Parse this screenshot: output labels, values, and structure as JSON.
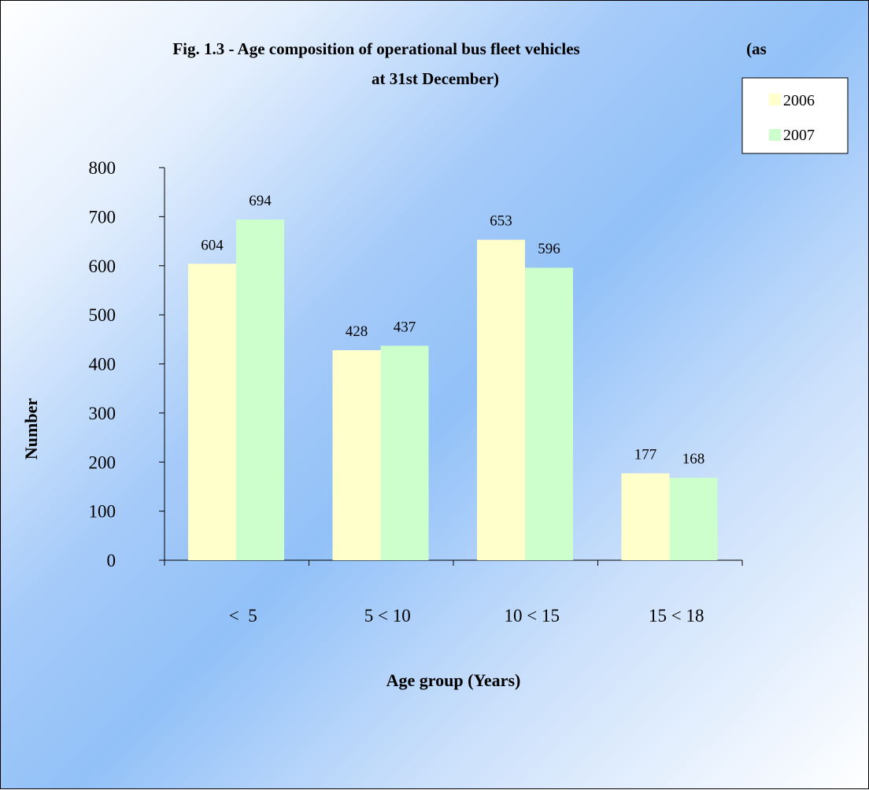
{
  "chart_data": {
    "type": "bar",
    "title": "Fig. 1.3 - Age composition of operational bus fleet vehicles (as at 31st December)",
    "title_lines": [
      "Fig. 1.3 - Age composition of operational bus fleet vehicles",
      "(as",
      "at 31st December)"
    ],
    "categories": [
      "<  5",
      "5 < 10",
      "10 < 15",
      "15 < 18"
    ],
    "series": [
      {
        "name": "2006",
        "values": [
          604,
          428,
          653,
          177
        ],
        "color": "#ffffcc"
      },
      {
        "name": "2007",
        "values": [
          694,
          437,
          596,
          168
        ],
        "color": "#ccffcc"
      }
    ],
    "xlabel": "Age group (Years)",
    "ylabel": "Number",
    "ylim": [
      0,
      800
    ],
    "yticks": [
      0,
      100,
      200,
      300,
      400,
      500,
      600,
      700,
      800
    ],
    "grid": false,
    "legend": "top-right",
    "data_labels": true
  }
}
